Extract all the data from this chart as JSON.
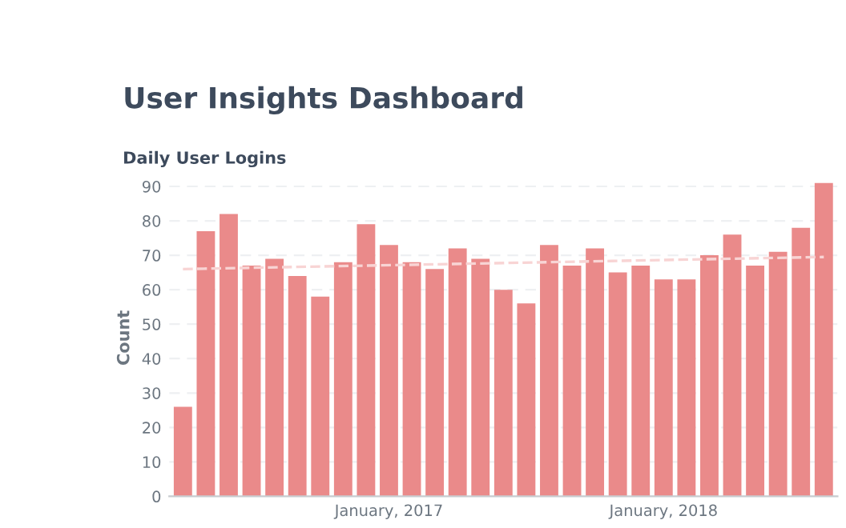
{
  "chart_data": {
    "type": "bar",
    "title": "User Insights Dashboard",
    "subtitle": "Daily User Logins",
    "ylabel": "Count",
    "categories": [
      null,
      null,
      null,
      null,
      null,
      null,
      null,
      null,
      null,
      "January, 2017",
      null,
      null,
      null,
      null,
      null,
      null,
      null,
      null,
      null,
      null,
      null,
      "January, 2018",
      null,
      null,
      null,
      null,
      null,
      null,
      null
    ],
    "series": [
      {
        "color": "#ea8a8a",
        "values": [
          26,
          77,
          82,
          67,
          69,
          64,
          58,
          68,
          79,
          73,
          68,
          66,
          72,
          69,
          60,
          56,
          73,
          67,
          72,
          65,
          67,
          63,
          63,
          70,
          76,
          67,
          71,
          78,
          91
        ]
      },
      {
        "type": "line",
        "color": "#f8d4d4",
        "line_style": "dashed",
        "values": [
          66,
          null,
          null,
          null,
          null,
          null,
          null,
          null,
          null,
          null,
          null,
          null,
          null,
          null,
          null,
          null,
          null,
          null,
          null,
          null,
          null,
          null,
          null,
          null,
          null,
          null,
          null,
          null,
          69.5
        ]
      }
    ],
    "ylim": [
      0,
      92
    ],
    "yticks": [
      0,
      10,
      20,
      30,
      40,
      50,
      60,
      70,
      80,
      90
    ],
    "grid": "y",
    "legend": false
  }
}
